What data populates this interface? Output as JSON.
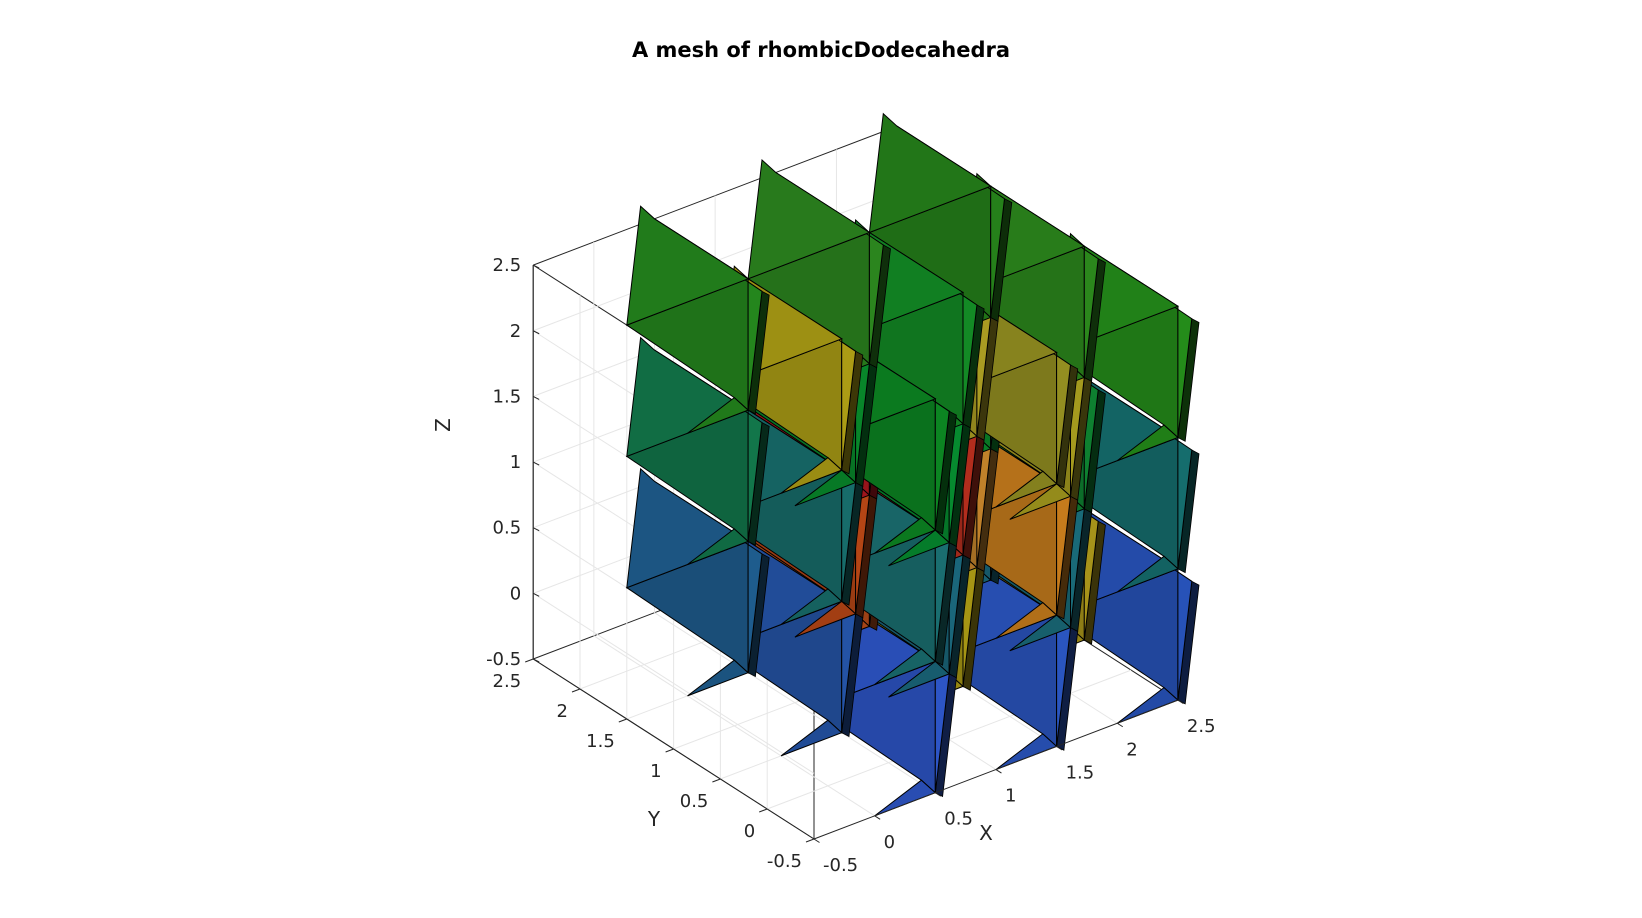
{
  "chart_data": {
    "type": "3d-polyhedra-mesh",
    "title": "A mesh of rhombicDodecahedra",
    "xlabel": "X",
    "ylabel": "Y",
    "zlabel": "Z",
    "xlim": [
      -0.5,
      2.5
    ],
    "ylim": [
      -0.5,
      2.5
    ],
    "zlim": [
      -0.5,
      2.5
    ],
    "x_ticks": [
      "-0.5",
      "0",
      "0.5",
      "1",
      "1.5",
      "2",
      "2.5"
    ],
    "y_ticks": [
      "-0.5",
      "0",
      "0.5",
      "1",
      "1.5",
      "2",
      "2.5"
    ],
    "z_ticks": [
      "-0.5",
      "0",
      "0.5",
      "1",
      "1.5",
      "2",
      "2.5"
    ],
    "grid": true,
    "view": "3d",
    "element": "rhombic dodecahedron",
    "colormap": "parula-like",
    "cells": [
      {
        "x": 0,
        "y": 0,
        "z": 0,
        "color": "#2d55c6"
      },
      {
        "x": 1,
        "y": 0,
        "z": 0,
        "color": "#2a55bf"
      },
      {
        "x": 2,
        "y": 0,
        "z": 0,
        "color": "#2752b8"
      },
      {
        "x": 0,
        "y": 1,
        "z": 0,
        "color": "#2453a5"
      },
      {
        "x": 1,
        "y": 1,
        "z": 0,
        "color": "#a59514"
      },
      {
        "x": 2,
        "y": 1,
        "z": 0,
        "color": "#a6931a"
      },
      {
        "x": 0,
        "y": 2,
        "z": 0,
        "color": "#1e5c8d"
      },
      {
        "x": 1,
        "y": 2,
        "z": 0,
        "color": "#b74c1a"
      },
      {
        "x": 2,
        "y": 2,
        "z": 0,
        "color": "#1a687b"
      },
      {
        "x": 0.5,
        "y": 0.5,
        "z": 0.5,
        "color": "#1a667a"
      },
      {
        "x": 1.5,
        "y": 0.5,
        "z": 0.5,
        "color": "#196a78"
      },
      {
        "x": 0.5,
        "y": 1.5,
        "z": 0.5,
        "color": "#b44515"
      },
      {
        "x": 1.5,
        "y": 1.5,
        "z": 0.5,
        "color": "#c0812a"
      },
      {
        "x": 0,
        "y": 0,
        "z": 1,
        "color": "#1a6e70"
      },
      {
        "x": 1,
        "y": 0,
        "z": 1,
        "color": "#c57b1c"
      },
      {
        "x": 2,
        "y": 0,
        "z": 1,
        "color": "#156d6d"
      },
      {
        "x": 0,
        "y": 1,
        "z": 1,
        "color": "#176c6a"
      },
      {
        "x": 1,
        "y": 1,
        "z": 1,
        "color": "#b22d1d"
      },
      {
        "x": 2,
        "y": 1,
        "z": 1,
        "color": "#0e8030"
      },
      {
        "x": 0,
        "y": 2,
        "z": 1,
        "color": "#12764a"
      },
      {
        "x": 1,
        "y": 2,
        "z": 1,
        "color": "#b0171f"
      },
      {
        "x": 2,
        "y": 2,
        "z": 1,
        "color": "#0a8a2a"
      },
      {
        "x": 0.5,
        "y": 0.5,
        "z": 1.5,
        "color": "#068a2f"
      },
      {
        "x": 1.5,
        "y": 0.5,
        "z": 1.5,
        "color": "#a49a1e"
      },
      {
        "x": 0.5,
        "y": 1.5,
        "z": 1.5,
        "color": "#08862a"
      },
      {
        "x": 1.5,
        "y": 1.5,
        "z": 1.5,
        "color": "#a99b22"
      },
      {
        "x": 0,
        "y": 0,
        "z": 2,
        "color": "#0c8522"
      },
      {
        "x": 1,
        "y": 0,
        "z": 2,
        "color": "#938e21"
      },
      {
        "x": 2,
        "y": 0,
        "z": 2,
        "color": "#248c1a"
      },
      {
        "x": 0,
        "y": 1,
        "z": 2,
        "color": "#ab9c15"
      },
      {
        "x": 1,
        "y": 1,
        "z": 2,
        "color": "#138a25"
      },
      {
        "x": 2,
        "y": 1,
        "z": 2,
        "color": "#2b871c"
      },
      {
        "x": 0,
        "y": 2,
        "z": 2,
        "color": "#24861d"
      },
      {
        "x": 1,
        "y": 2,
        "z": 2,
        "color": "#2b851e"
      },
      {
        "x": 2,
        "y": 2,
        "z": 2,
        "color": "#25801a"
      }
    ]
  }
}
